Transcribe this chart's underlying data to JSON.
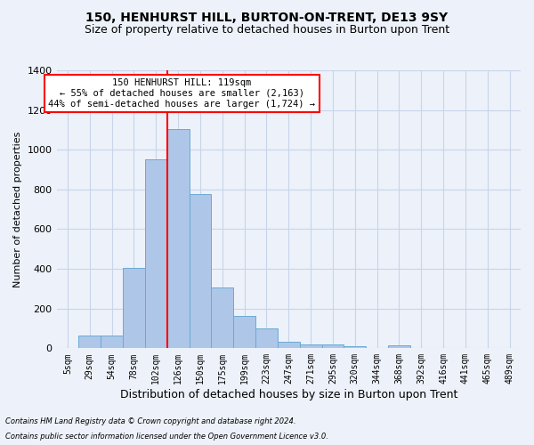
{
  "title": "150, HENHURST HILL, BURTON-ON-TRENT, DE13 9SY",
  "subtitle": "Size of property relative to detached houses in Burton upon Trent",
  "xlabel": "Distribution of detached houses by size in Burton upon Trent",
  "ylabel": "Number of detached properties",
  "bin_labels": [
    "5sqm",
    "29sqm",
    "54sqm",
    "78sqm",
    "102sqm",
    "126sqm",
    "150sqm",
    "175sqm",
    "199sqm",
    "223sqm",
    "247sqm",
    "271sqm",
    "295sqm",
    "320sqm",
    "344sqm",
    "368sqm",
    "392sqm",
    "416sqm",
    "441sqm",
    "465sqm",
    "489sqm"
  ],
  "bar_heights": [
    0,
    65,
    65,
    405,
    950,
    1105,
    775,
    305,
    165,
    100,
    35,
    20,
    20,
    10,
    0,
    15,
    0,
    0,
    0,
    0,
    0
  ],
  "bar_color": "#aec6e8",
  "bar_edge_color": "#6aaad4",
  "grid_color": "#c8d4e8",
  "bg_color": "#edf2fa",
  "vline_x_idx": 5,
  "vline_color": "red",
  "annotation_text": "150 HENHURST HILL: 119sqm\n← 55% of detached houses are smaller (2,163)\n44% of semi-detached houses are larger (1,724) →",
  "annotation_box_color": "white",
  "annotation_edge_color": "red",
  "footnote1": "Contains HM Land Registry data © Crown copyright and database right 2024.",
  "footnote2": "Contains public sector information licensed under the Open Government Licence v3.0.",
  "ylim": [
    0,
    1400
  ],
  "yticks": [
    0,
    200,
    400,
    600,
    800,
    1000,
    1200,
    1400
  ],
  "title_fontsize": 10,
  "subtitle_fontsize": 9,
  "ylabel_fontsize": 8,
  "xlabel_fontsize": 9,
  "tick_fontsize": 7,
  "annot_fontsize": 7.5,
  "footnote_fontsize": 6
}
